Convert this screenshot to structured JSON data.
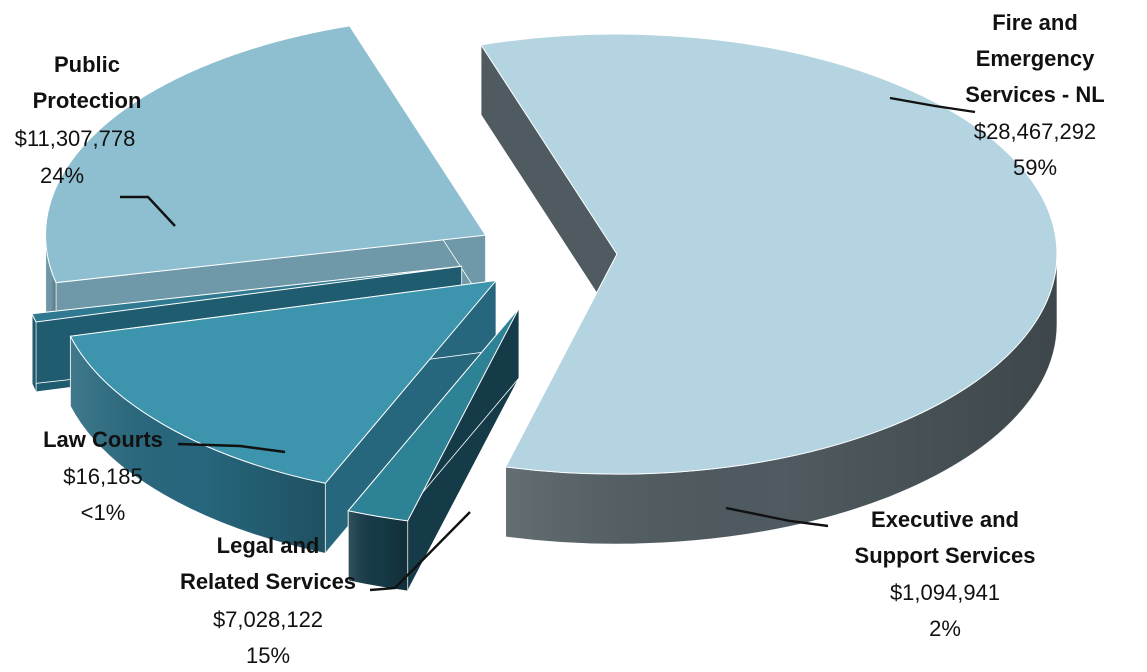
{
  "chart_data": {
    "type": "pie",
    "title": "",
    "slices": [
      {
        "name_lines": [
          "Fire and",
          "Emergency",
          "Services - NL"
        ],
        "value": 28467292,
        "value_label": "$28,467,292",
        "percent_label": "59%",
        "top_color": "#b3d4e0",
        "side_color": "#4f5b60"
      },
      {
        "name_lines": [
          "Executive and",
          "Support Services"
        ],
        "value": 1094941,
        "value_label": "$1,094,941",
        "percent_label": "2%",
        "top_color": "#2e8296",
        "side_color": "#163b48"
      },
      {
        "name_lines": [
          "Legal and",
          "Related Services"
        ],
        "value": 7028122,
        "value_label": "$7,028,122",
        "percent_label": "15%",
        "top_color": "#3d94ad",
        "side_color": "#27677d"
      },
      {
        "name_lines": [
          "Law Courts"
        ],
        "value": 16185,
        "value_label": "$16,185",
        "percent_label": "<1%",
        "top_color": "#2f7991",
        "side_color": "#1f5c70"
      },
      {
        "name_lines": [
          "Public",
          "Protection"
        ],
        "value": 11307778,
        "value_label": "$11,307,778",
        "percent_label": "24%",
        "top_color": "#8ebfd0",
        "side_color": "#6f98a8"
      }
    ]
  }
}
